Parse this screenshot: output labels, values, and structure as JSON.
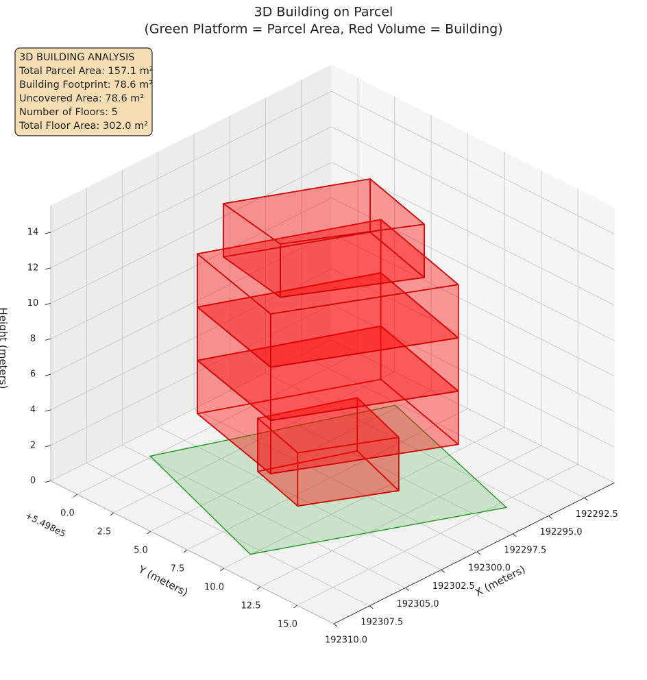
{
  "chart_data": {
    "type": "building3d",
    "title": "3D Building on Parcel",
    "subtitle": "(Green Platform = Parcel Area, Red Volume = Building)",
    "info_box": [
      "3D BUILDING ANALYSIS",
      "Total Parcel Area: 157.1 m²",
      "Building Footprint: 78.6 m²",
      "Uncovered Area: 78.6 m²",
      "Number of Floors: 5",
      "Total Floor Area: 302.0 m²"
    ],
    "x_label": "X (meters)",
    "y_label": "Y (meters)",
    "z_label": "Height (meters)",
    "y_offset_label": "+5.498e5",
    "xlim": [
      192290.4,
      192310
    ],
    "ylim": [
      -1.8,
      17.5
    ],
    "zlim": [
      0,
      15.5
    ],
    "xticks": [
      192292.5,
      {
        "value": 192295,
        "label": "192295.0"
      },
      192297.5,
      {
        "value": 192300,
        "label": "192300.0"
      },
      192302.5,
      {
        "value": 192305,
        "label": "192305.0"
      },
      192307.5,
      {
        "value": 192310,
        "label": "192310.0"
      }
    ],
    "yticks": [
      {
        "value": 0,
        "label": "0.0"
      },
      2.5,
      {
        "value": 5,
        "label": "5.0"
      },
      7.5,
      {
        "value": 10,
        "label": "10.0"
      },
      12.5,
      {
        "value": 15,
        "label": "15.0"
      }
    ],
    "zticks": [
      0,
      2,
      4,
      6,
      8,
      10,
      12,
      14
    ],
    "grid": true,
    "parcel": {
      "color": "#2ca02c",
      "x": [
        192304.8,
        192292.7,
        192295.9,
        192308.1
      ],
      "y": [
        -0.1,
        4.8,
        15.5,
        9.95
      ]
    },
    "building": {
      "color": "#ff0000",
      "floors": [
        {
          "x": [
            192302.1,
            192297.2,
            192298.5,
            192303.1
          ],
          "y": [
            4.6,
            6.6,
            10.7,
            8.3
          ],
          "base": 0,
          "top": 3
        },
        {
          "x": [
            192303.9,
            192295.1,
            192296.9,
            192305.5
          ],
          "y": [
            2.24,
            6.16,
            13.2,
            8.8
          ],
          "base": 3,
          "top": 6
        },
        {
          "x": [
            192303.9,
            192295.1,
            192296.9,
            192305.5
          ],
          "y": [
            2.24,
            6.16,
            13.2,
            8.8
          ],
          "base": 6,
          "top": 9
        },
        {
          "x": [
            192303.9,
            192295.1,
            192296.9,
            192305.5
          ],
          "y": [
            2.24,
            6.16,
            13.2,
            8.8
          ],
          "base": 9,
          "top": 12
        },
        {
          "x": [
            192303.2,
            192296.35,
            192297.6,
            192304.0
          ],
          "y": [
            3.33,
            6.65,
            11.56,
            8.0
          ],
          "base": 12,
          "top": 15
        }
      ]
    }
  }
}
